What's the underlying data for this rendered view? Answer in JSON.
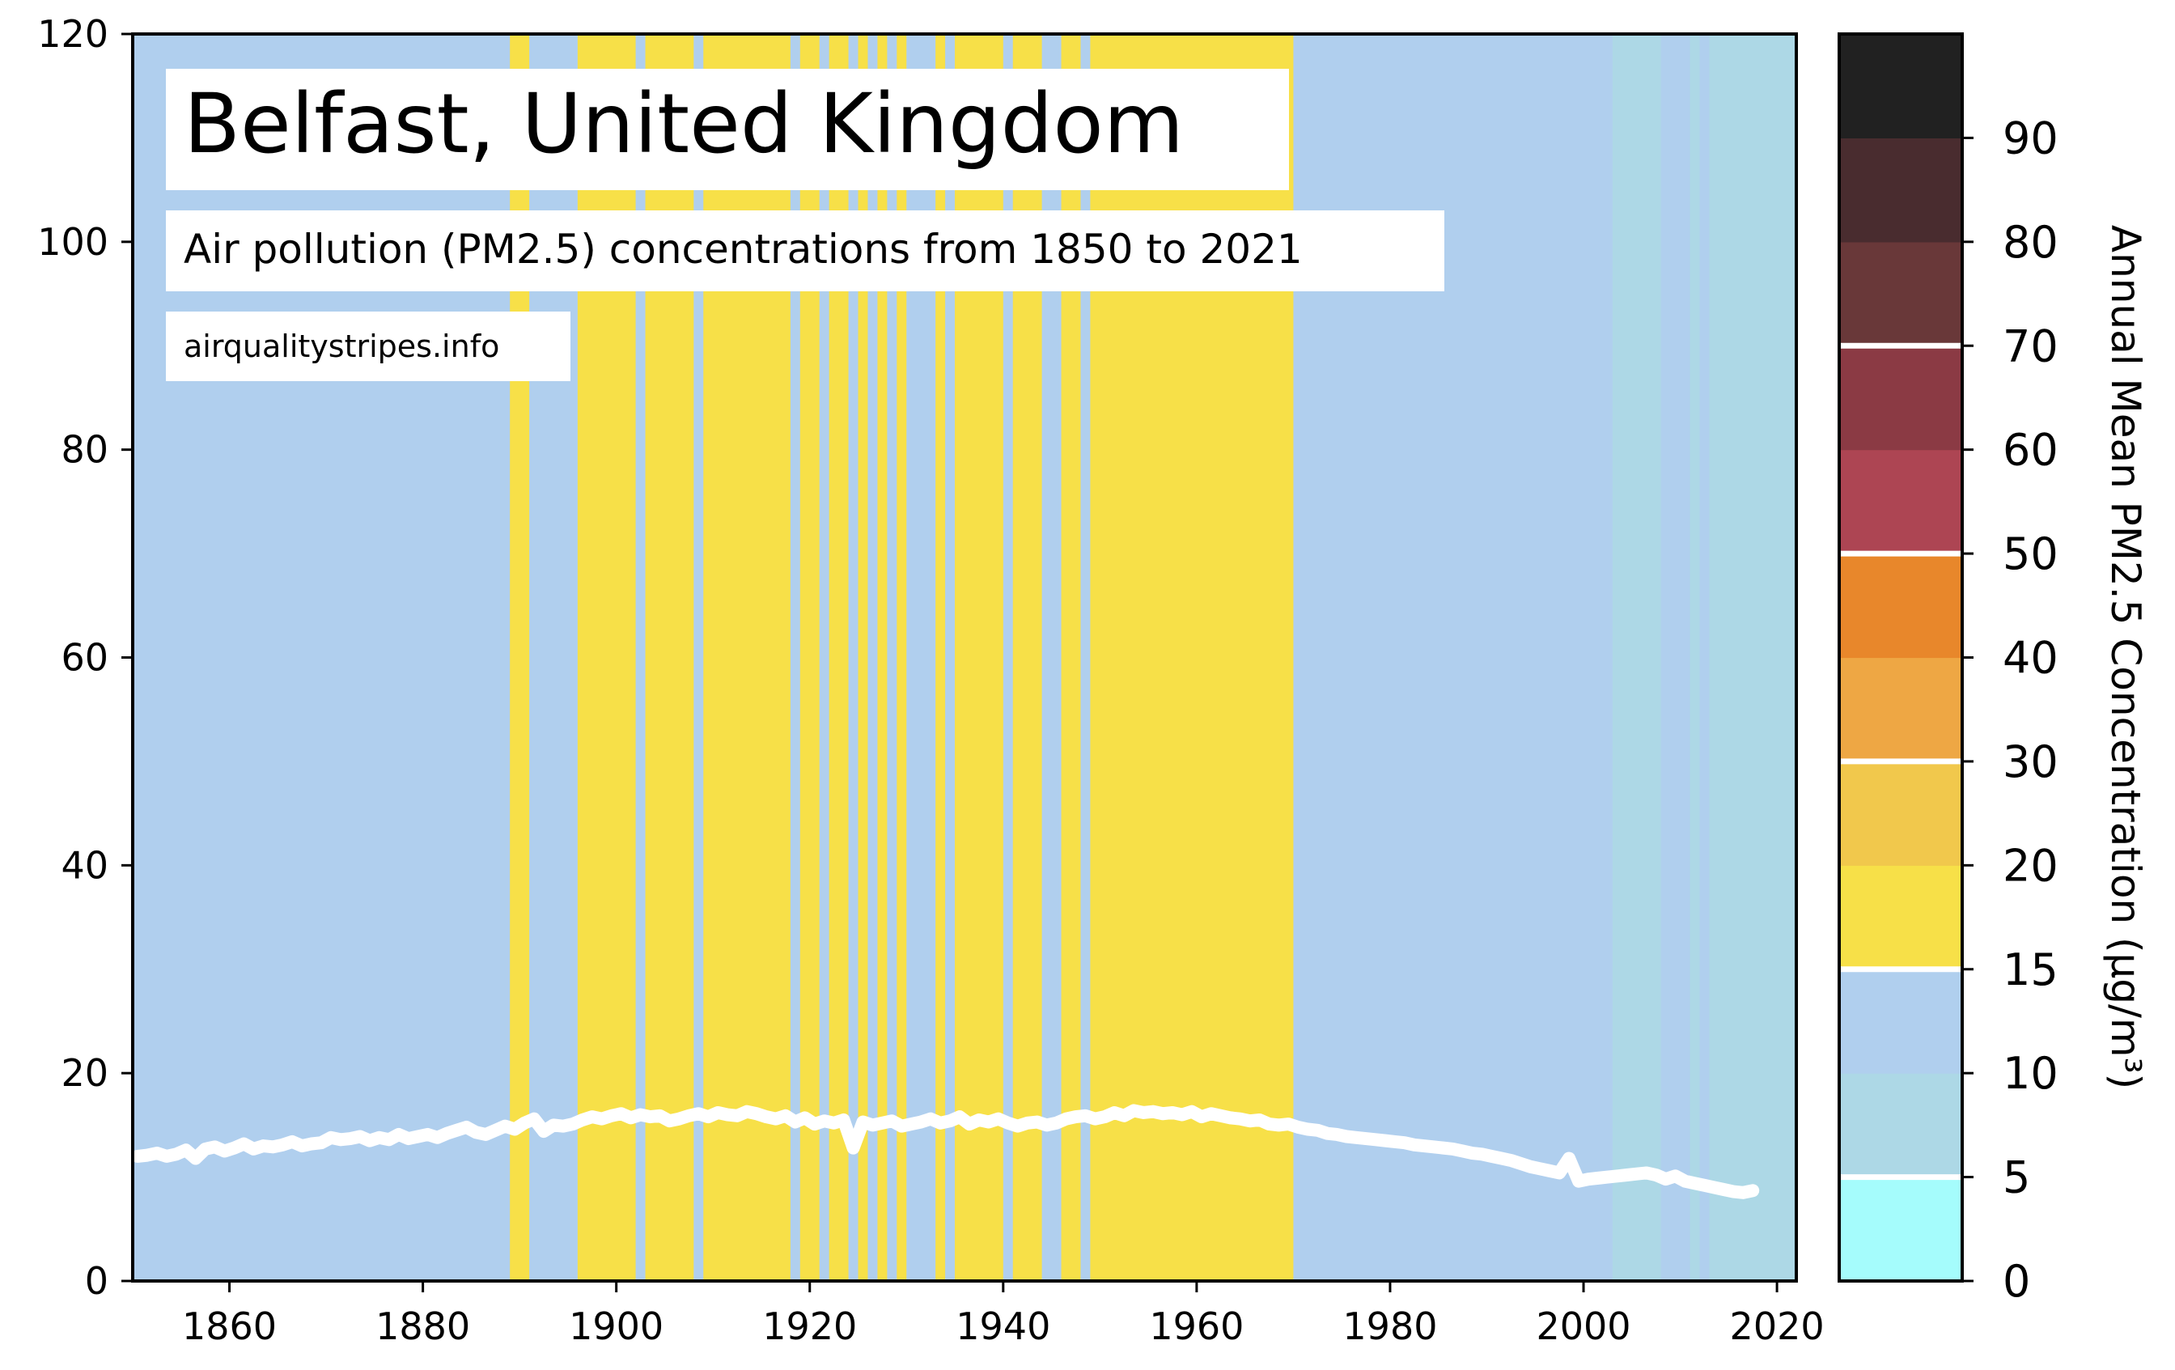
{
  "chart_data": {
    "type": "area",
    "title": "Belfast, United Kingdom",
    "subtitle": "Air pollution (PM2.5) concentrations from 1850 to 2021",
    "source": "airqualitystripes.info",
    "xlim": [
      1850,
      2022
    ],
    "ylim": [
      0,
      120
    ],
    "x_ticks": [
      "1860",
      "1880",
      "1900",
      "1920",
      "1940",
      "1960",
      "1980",
      "2000",
      "2020"
    ],
    "y_ticks": [
      "0",
      "20",
      "40",
      "60",
      "80",
      "100",
      "120"
    ],
    "grid": false,
    "series": [
      {
        "x_start": 1850,
        "values": [
          12.0,
          12.1,
          12.3,
          12.0,
          12.2,
          12.6,
          11.8,
          12.7,
          12.9,
          12.5,
          12.8,
          13.2,
          12.7,
          13.0,
          12.9,
          13.1,
          13.4,
          13.0,
          13.2,
          13.3,
          13.8,
          13.6,
          13.7,
          13.9,
          13.5,
          13.8,
          13.6,
          14.1,
          13.7,
          13.9,
          14.1,
          13.8,
          14.2,
          14.5,
          14.8,
          14.3,
          14.1,
          14.5,
          14.9,
          14.6,
          15.2,
          15.6,
          14.4,
          15.0,
          14.9,
          15.1,
          15.5,
          15.8,
          15.6,
          15.9,
          16.1,
          15.7,
          16.0,
          15.8,
          15.9,
          15.4,
          15.6,
          15.9,
          16.1,
          15.8,
          16.2,
          16.0,
          15.9,
          16.3,
          16.1,
          15.8,
          15.6,
          15.9,
          15.3,
          15.7,
          15.1,
          15.4,
          15.2,
          15.5,
          12.8,
          15.3,
          15.0,
          15.2,
          15.4,
          14.9,
          15.1,
          15.3,
          15.6,
          15.2,
          15.4,
          15.8,
          15.1,
          15.5,
          15.3,
          15.6,
          15.2,
          14.9,
          15.2,
          15.3,
          15.0,
          15.2,
          15.6,
          15.8,
          15.9,
          15.6,
          15.8,
          16.2,
          15.9,
          16.4,
          16.2,
          16.3,
          16.1,
          16.2,
          16.0,
          16.3,
          15.8,
          16.1,
          15.9,
          15.7,
          15.6,
          15.4,
          15.5,
          15.1,
          15.0,
          15.1,
          14.8,
          14.6,
          14.5,
          14.2,
          14.1,
          13.9,
          13.8,
          13.7,
          13.6,
          13.5,
          13.4,
          13.3,
          13.1,
          13.0,
          12.9,
          12.8,
          12.7,
          12.5,
          12.3,
          12.2,
          12.0,
          11.8,
          11.6,
          11.3,
          11.0,
          10.8,
          10.6,
          10.4,
          11.8,
          9.6,
          9.8,
          9.9,
          10.0,
          10.1,
          10.2,
          10.3,
          10.4,
          10.2,
          9.8,
          10.1,
          9.6,
          9.4,
          9.2,
          9.0,
          8.8,
          8.6,
          8.5,
          8.7
        ],
        "stripe_categories": "blue:<15, light-blue:<10 (2004-2021), yellow:15-20"
      }
    ],
    "stripes": [
      {
        "from": 1850,
        "to": 1889,
        "color": "#b0cfee"
      },
      {
        "from": 1889,
        "to": 1891,
        "color": "#f7e048"
      },
      {
        "from": 1891,
        "to": 1896,
        "color": "#b0cfee"
      },
      {
        "from": 1896,
        "to": 1902,
        "color": "#f7e048"
      },
      {
        "from": 1902,
        "to": 1903,
        "color": "#b0cfee"
      },
      {
        "from": 1903,
        "to": 1908,
        "color": "#f7e048"
      },
      {
        "from": 1908,
        "to": 1909,
        "color": "#b0cfee"
      },
      {
        "from": 1909,
        "to": 1918,
        "color": "#f7e048"
      },
      {
        "from": 1918,
        "to": 1919,
        "color": "#b0cfee"
      },
      {
        "from": 1919,
        "to": 1921,
        "color": "#f7e048"
      },
      {
        "from": 1921,
        "to": 1922,
        "color": "#b0cfee"
      },
      {
        "from": 1922,
        "to": 1924,
        "color": "#f7e048"
      },
      {
        "from": 1924,
        "to": 1925,
        "color": "#b0cfee"
      },
      {
        "from": 1925,
        "to": 1926,
        "color": "#f7e048"
      },
      {
        "from": 1926,
        "to": 1927,
        "color": "#b0cfee"
      },
      {
        "from": 1927,
        "to": 1928,
        "color": "#f7e048"
      },
      {
        "from": 1928,
        "to": 1929,
        "color": "#b0cfee"
      },
      {
        "from": 1929,
        "to": 1930,
        "color": "#f7e048"
      },
      {
        "from": 1930,
        "to": 1933,
        "color": "#b0cfee"
      },
      {
        "from": 1933,
        "to": 1934,
        "color": "#f7e048"
      },
      {
        "from": 1934,
        "to": 1935,
        "color": "#b0cfee"
      },
      {
        "from": 1935,
        "to": 1940,
        "color": "#f7e048"
      },
      {
        "from": 1940,
        "to": 1941,
        "color": "#b0cfee"
      },
      {
        "from": 1941,
        "to": 1944,
        "color": "#f7e048"
      },
      {
        "from": 1944,
        "to": 1946,
        "color": "#b0cfee"
      },
      {
        "from": 1946,
        "to": 1948,
        "color": "#f7e048"
      },
      {
        "from": 1948,
        "to": 1949,
        "color": "#b0cfee"
      },
      {
        "from": 1949,
        "to": 1970,
        "color": "#f7e048"
      },
      {
        "from": 1970,
        "to": 2003,
        "color": "#b0cfee"
      },
      {
        "from": 2003,
        "to": 2008,
        "color": "#add8e6"
      },
      {
        "from": 2008,
        "to": 2011,
        "color": "#b0cfee"
      },
      {
        "from": 2011,
        "to": 2012,
        "color": "#add8e6"
      },
      {
        "from": 2012,
        "to": 2013,
        "color": "#b0cfee"
      },
      {
        "from": 2013,
        "to": 2022,
        "color": "#add8e6"
      }
    ],
    "colorbar": {
      "label": "Annual Mean PM2.5 Concentration (μg/m³)",
      "tick_labels": [
        "0",
        "5",
        "10",
        "15",
        "20",
        "30",
        "40",
        "50",
        "60",
        "70",
        "80",
        "90"
      ],
      "colors": [
        "#a5fcfc",
        "#add8e6",
        "#b0cfee",
        "#f7e048",
        "#f1c84c",
        "#eea744",
        "#e8872b",
        "#ad4553",
        "#8b3a44",
        "#693839",
        "#492c2f",
        "#212121"
      ],
      "white_lines_at": [
        "5",
        "15",
        "30",
        "50",
        "70"
      ]
    }
  }
}
